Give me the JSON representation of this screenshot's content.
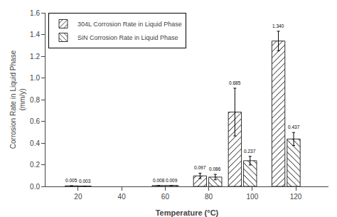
{
  "chart_data": {
    "type": "bar",
    "xlabel": "Temperature (°C)",
    "ylabel": "Corrosion Rate in Liquid Phase\n(mm/y)",
    "xlim": [
      5,
      135
    ],
    "xticks": [
      20,
      40,
      60,
      80,
      100,
      120
    ],
    "ylim": [
      0,
      1.6
    ],
    "yticks": [
      {
        "value": 0.0,
        "label": "0.0"
      },
      0.2,
      0.4,
      0.6,
      0.8,
      {
        "value": 1.0,
        "label": "1.0"
      },
      1.2,
      1.4,
      1.6
    ],
    "grid": false,
    "legend": "upper left",
    "data_labels": true,
    "series": [
      {
        "name": "304L Corrosion Rate in Liquid Phase",
        "color": "white",
        "x": [
          17,
          57,
          76,
          92,
          112
        ],
        "values": [
          0.005,
          0.008,
          0.097,
          0.685,
          1.34
        ],
        "errors": [
          0.0,
          0.0,
          0.025,
          0.22,
          0.09
        ],
        "value_labels": [
          "0.005",
          "0.008",
          "0.097",
          "0.685",
          "1.340"
        ]
      },
      {
        "name": "SiN Corrosion Rate in Liquid Phase",
        "color": "white",
        "x": [
          23,
          63,
          83,
          99,
          119
        ],
        "values": [
          0.003,
          0.009,
          0.086,
          0.237,
          0.437
        ],
        "errors": [
          0.0,
          0.0,
          0.025,
          0.04,
          0.06
        ],
        "value_labels": [
          "0.003",
          "0.009",
          "0.086",
          "0.237",
          "0.437"
        ]
      }
    ]
  }
}
